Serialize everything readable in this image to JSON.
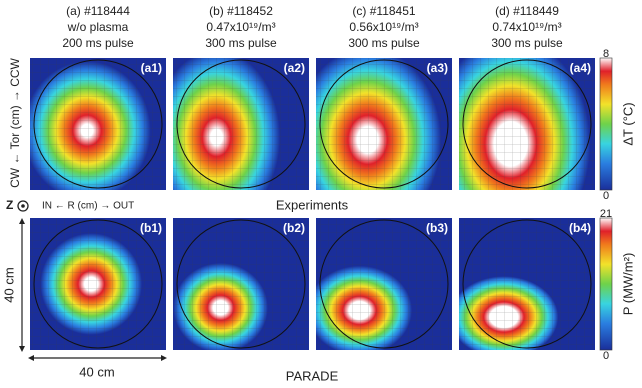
{
  "columns": [
    {
      "label": "(a) #118444",
      "line2": "w/o plasma",
      "line3": "200 ms pulse"
    },
    {
      "label": "(b) #118452",
      "line2": "0.47x10¹⁹/m³",
      "line3": "300 ms pulse"
    },
    {
      "label": "(c) #118451",
      "line2": "0.56x10¹⁹/m³",
      "line3": "300 ms pulse"
    },
    {
      "label": "(d) #118449",
      "line2": "0.74x10¹⁹/m³",
      "line3": "300 ms pulse"
    }
  ],
  "top_row": {
    "panels": [
      "(a1)",
      "(a2)",
      "(a3)",
      "(a4)"
    ],
    "y_axis_label": "CW ← Tor (cm) → CCW",
    "row_label": "Experiments",
    "colorbar": {
      "label": "ΔT (°C)",
      "max": 8,
      "min": 0
    }
  },
  "axis_note": {
    "z": "Z",
    "r_label": "IN ← R (cm) → OUT"
  },
  "bottom_row": {
    "panels": [
      "(b1)",
      "(b2)",
      "(b3)",
      "(b4)"
    ],
    "row_label": "PARADE",
    "colorbar": {
      "label": "P (MW/m²)",
      "max": 21,
      "min": 0
    }
  },
  "scale": {
    "vertical": "40 cm",
    "horizontal": "40 cm"
  }
}
